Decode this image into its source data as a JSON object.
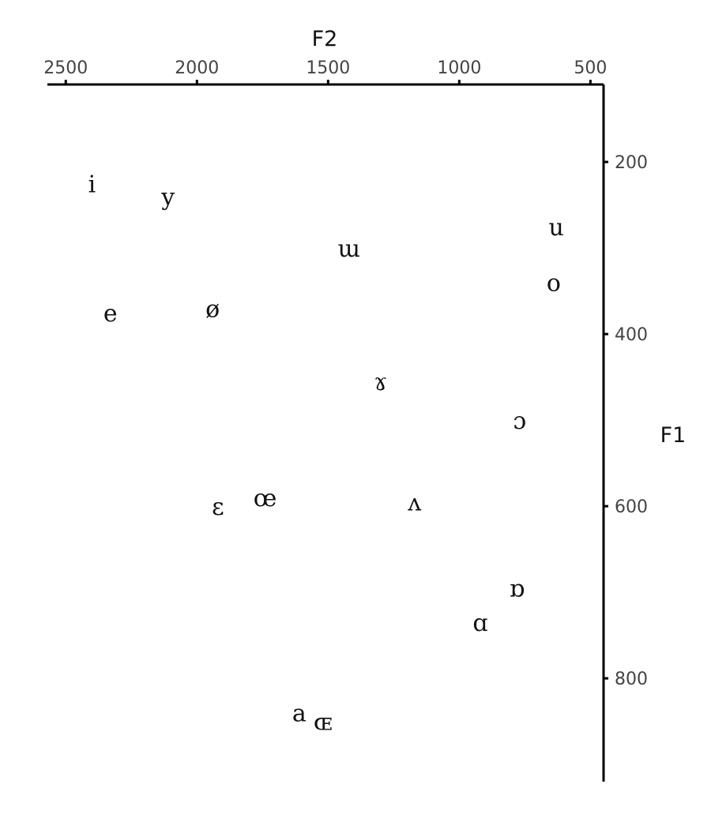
{
  "chart_data": {
    "type": "scatter",
    "title": "",
    "xlabel": "F2",
    "ylabel": "F1",
    "x_reversed": true,
    "y_reversed": true,
    "x_axis_position": "top",
    "y_axis_position": "right",
    "xlim": [
      2570,
      450
    ],
    "ylim": [
      110,
      920
    ],
    "x_ticks": [
      2500,
      2000,
      1500,
      1000,
      500
    ],
    "x_tick_labels": [
      "2500",
      "2000",
      "1500",
      "1000",
      "500"
    ],
    "y_ticks": [
      200,
      400,
      600,
      800
    ],
    "y_tick_labels": [
      "200",
      "400",
      "600",
      "800"
    ],
    "grid": false,
    "legend": "none",
    "points": [
      {
        "label": "i",
        "x": 2400,
        "y": 235
      },
      {
        "label": "y",
        "x": 2110,
        "y": 250
      },
      {
        "label": "u",
        "x": 630,
        "y": 285
      },
      {
        "label": "ɯ",
        "x": 1420,
        "y": 310
      },
      {
        "label": "o",
        "x": 640,
        "y": 350
      },
      {
        "label": "ø",
        "x": 1940,
        "y": 380
      },
      {
        "label": "e",
        "x": 2330,
        "y": 385
      },
      {
        "label": "ɤ",
        "x": 1300,
        "y": 465
      },
      {
        "label": "ɔ",
        "x": 770,
        "y": 510
      },
      {
        "label": "œ",
        "x": 1740,
        "y": 600
      },
      {
        "label": "ʌ",
        "x": 1170,
        "y": 605
      },
      {
        "label": "ɛ",
        "x": 1920,
        "y": 610
      },
      {
        "label": "ɒ",
        "x": 780,
        "y": 705
      },
      {
        "label": "ɑ",
        "x": 920,
        "y": 745
      },
      {
        "label": "a",
        "x": 1610,
        "y": 850
      },
      {
        "label": "ɶ",
        "x": 1520,
        "y": 860
      }
    ]
  }
}
